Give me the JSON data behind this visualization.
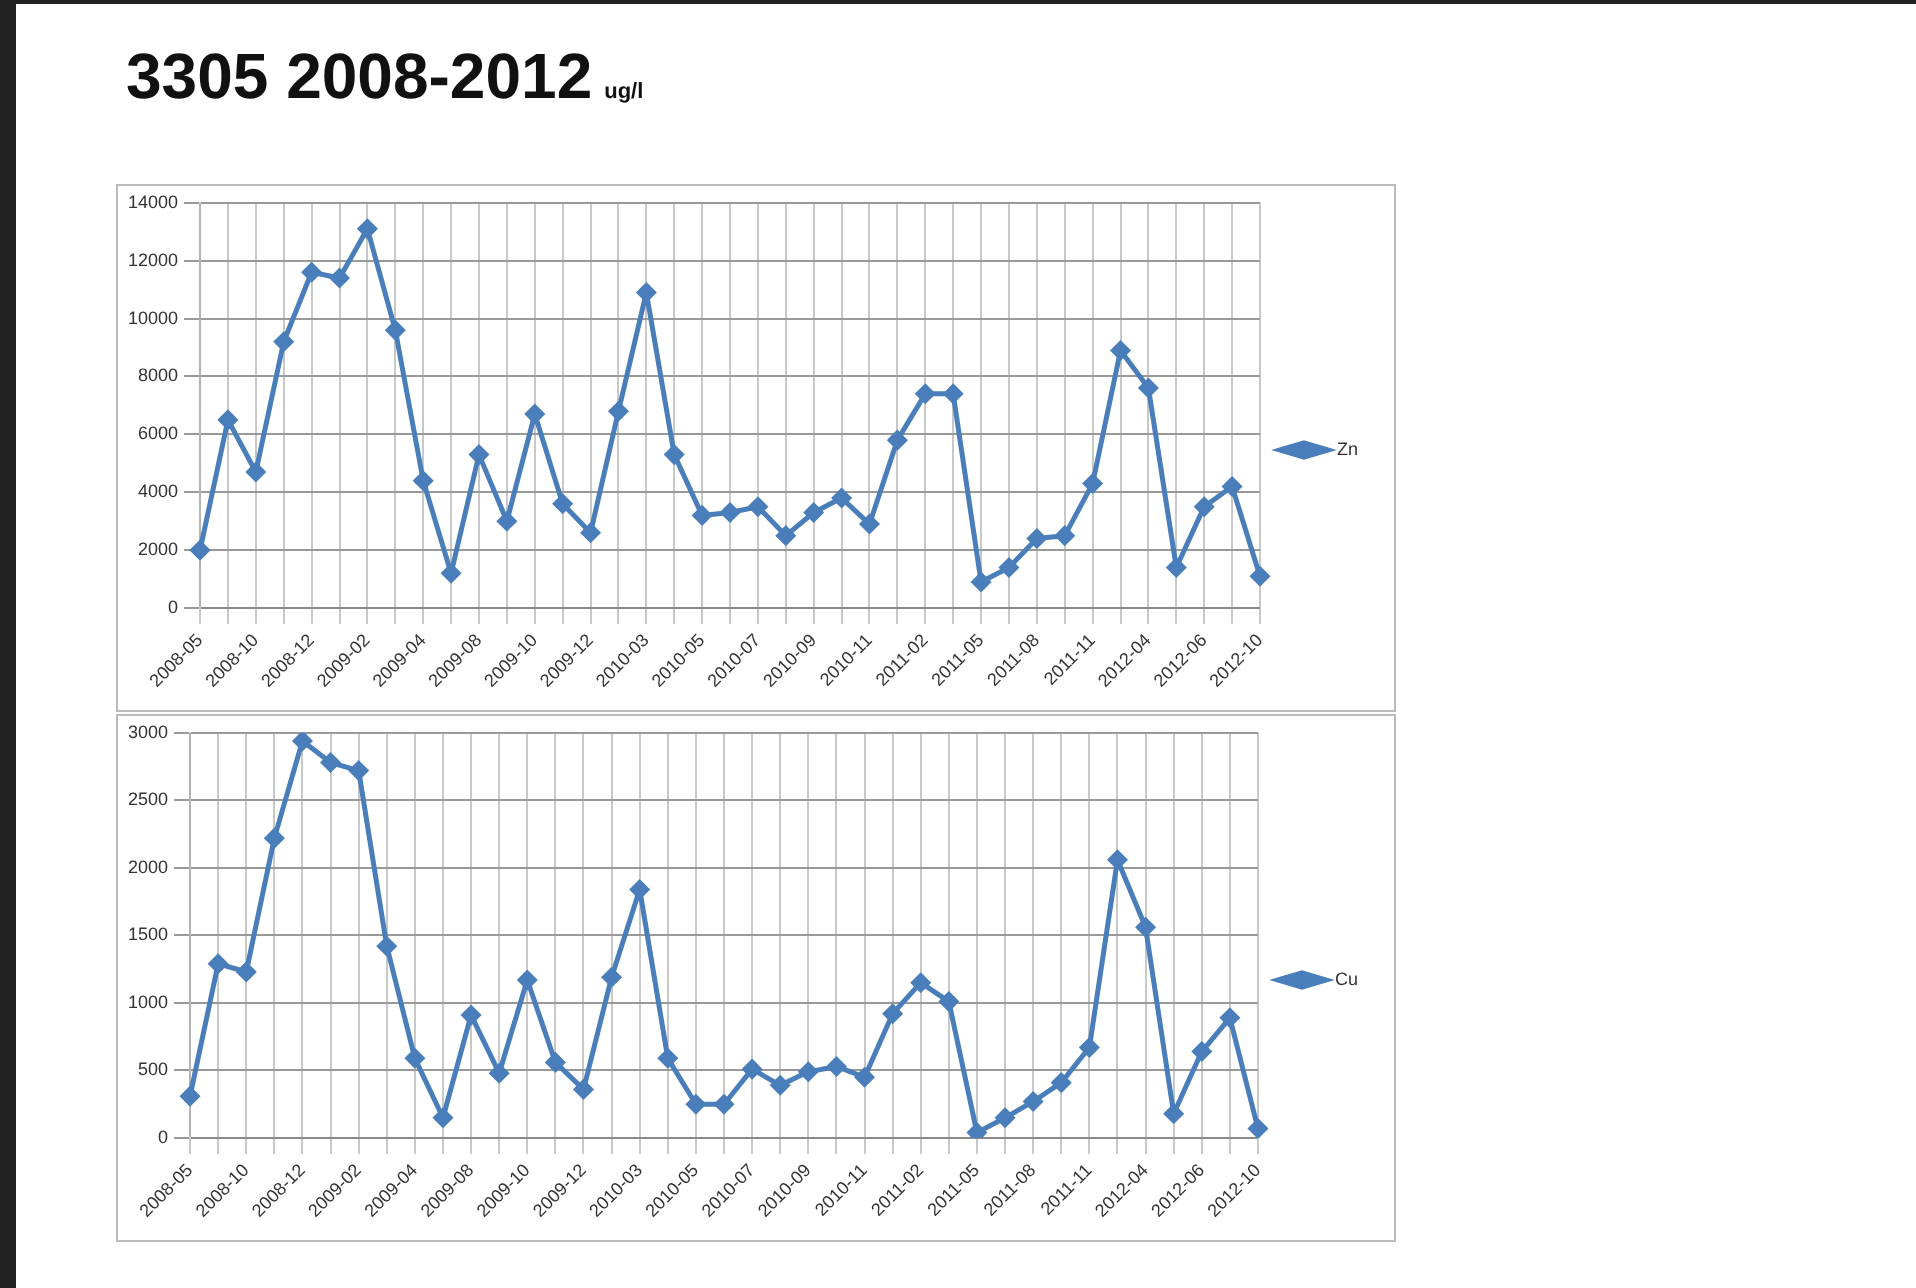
{
  "chart_data": [
    {
      "type": "line",
      "title": "3305 2008-2012",
      "subtitle": "ug/l",
      "categories": [
        "2008-05",
        null,
        "2008-10",
        null,
        "2008-12",
        null,
        "2009-02",
        null,
        "2009-04",
        null,
        "2009-08",
        null,
        "2009-10",
        null,
        "2009-12",
        null,
        "2010-03",
        null,
        "2010-05",
        null,
        "2010-07",
        null,
        "2010-09",
        null,
        "2010-11",
        null,
        "2011-02",
        null,
        "2011-05",
        null,
        "2011-08",
        null,
        "2011-11",
        null,
        "2012-04",
        null,
        "2012-06",
        null,
        "2012-10"
      ],
      "series": [
        {
          "name": "Zn",
          "color": "#4a7ebb",
          "values": [
            2000,
            6500,
            4700,
            9200,
            11600,
            11400,
            13100,
            9600,
            4400,
            1200,
            5300,
            3000,
            6700,
            3600,
            2600,
            6800,
            10900,
            5300,
            3200,
            3300,
            3500,
            2500,
            3300,
            3800,
            2900,
            5800,
            7400,
            7400,
            900,
            1400,
            2400,
            2500,
            4300,
            8900,
            7600,
            1400,
            3500,
            4200,
            1100
          ]
        }
      ],
      "ylim": [
        0,
        14000
      ],
      "yticks": [
        0,
        2000,
        4000,
        6000,
        8000,
        10000,
        12000,
        14000
      ],
      "grid": true,
      "legend": "right",
      "marker": "diamond",
      "line_style": "solid"
    },
    {
      "type": "line",
      "categories": [
        "2008-05",
        null,
        "2008-10",
        null,
        "2008-12",
        null,
        "2009-02",
        null,
        "2009-04",
        null,
        "2009-08",
        null,
        "2009-10",
        null,
        "2009-12",
        null,
        "2010-03",
        null,
        "2010-05",
        null,
        "2010-07",
        null,
        "2010-09",
        null,
        "2010-11",
        null,
        "2011-02",
        null,
        "2011-05",
        null,
        "2011-08",
        null,
        "2011-11",
        null,
        "2012-04",
        null,
        "2012-06",
        null,
        "2012-10"
      ],
      "series": [
        {
          "name": "Cu",
          "color": "#4a7ebb",
          "values": [
            310,
            1290,
            1230,
            2220,
            2940,
            2780,
            2720,
            1420,
            590,
            150,
            910,
            480,
            1170,
            560,
            360,
            1190,
            1840,
            590,
            250,
            250,
            510,
            390,
            490,
            530,
            450,
            920,
            1150,
            1010,
            40,
            150,
            270,
            410,
            670,
            2060,
            1560,
            180,
            640,
            890,
            70
          ]
        }
      ],
      "ylim": [
        0,
        3000
      ],
      "yticks": [
        0,
        500,
        1000,
        1500,
        2000,
        2500,
        3000
      ],
      "grid": true,
      "legend": "right",
      "marker": "diamond",
      "line_style": "solid"
    }
  ]
}
